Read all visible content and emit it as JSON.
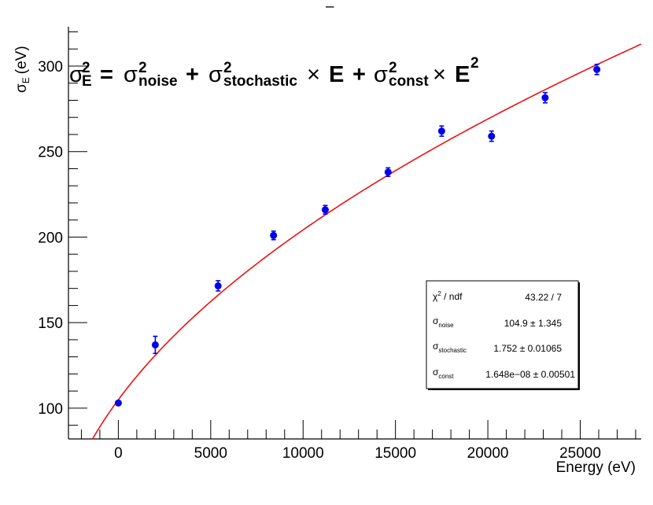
{
  "chart_data": {
    "type": "scatter",
    "title": "",
    "xlabel": "Energy (eV)",
    "ylabel_base": "σ",
    "ylabel_sub": "E",
    "ylabel_unit": "(eV)",
    "xlim": [
      -2700,
      28300
    ],
    "ylim": [
      82,
      323
    ],
    "xticks_major": [
      0,
      5000,
      10000,
      15000,
      20000,
      25000
    ],
    "yticks_major": [
      100,
      150,
      200,
      250,
      300
    ],
    "xtick_labels": [
      "0",
      "5000",
      "10000",
      "15000",
      "20000",
      "25000"
    ],
    "ytick_labels": [
      "100",
      "150",
      "200",
      "250",
      "300"
    ],
    "marker_color": "#0000ee",
    "fit_color": "#ee1111",
    "points": [
      {
        "x": 0,
        "y": 103,
        "err": 1.0
      },
      {
        "x": 2000,
        "y": 137,
        "err": 5.0
      },
      {
        "x": 5400,
        "y": 171.5,
        "err": 3.0
      },
      {
        "x": 8400,
        "y": 201,
        "err": 2.5
      },
      {
        "x": 11200,
        "y": 216,
        "err": 2.5
      },
      {
        "x": 14600,
        "y": 238,
        "err": 2.5
      },
      {
        "x": 17500,
        "y": 262,
        "err": 3.0
      },
      {
        "x": 20200,
        "y": 259,
        "err": 3.0
      },
      {
        "x": 23100,
        "y": 281.5,
        "err": 3.0
      },
      {
        "x": 25900,
        "y": 298,
        "err": 3.0
      }
    ],
    "fit": {
      "sigma_noise": 104.9,
      "sigma_stochastic": 1.752,
      "sigma_const": 1.648e-08
    },
    "formula": {
      "lhs_base": "σ",
      "lhs_sup": "2",
      "lhs_sub": "E",
      "eq": "=",
      "t1_base": "σ",
      "t1_sup": "2",
      "t1_sub": "noise",
      "plus1": "+",
      "t2_base": "σ",
      "t2_sup": "2",
      "t2_sub": "stochastic",
      "times1": "×",
      "t2_var": "E",
      "plus2": "+",
      "t3_base": "σ",
      "t3_sup": "2",
      "t3_sub": "const",
      "times2": "×",
      "t3_var": "E",
      "t3_var_sup": "2"
    },
    "stats_box": {
      "rows": [
        {
          "label_base": "χ",
          "label_sup": "2",
          "label_rest": " / ndf",
          "label_sub": "",
          "value": "43.22 / 7"
        },
        {
          "label_base": "σ",
          "label_sup": "",
          "label_rest": "",
          "label_sub": "noise",
          "value": "104.9 ± 1.345"
        },
        {
          "label_base": "σ",
          "label_sup": "",
          "label_rest": "",
          "label_sub": "stochastic",
          "value": "1.752 ± 0.01065"
        },
        {
          "label_base": "σ",
          "label_sup": "",
          "label_rest": "",
          "label_sub": "const",
          "value": "1.648e−08 ± 0.00501"
        }
      ]
    },
    "top_mark": "–"
  }
}
